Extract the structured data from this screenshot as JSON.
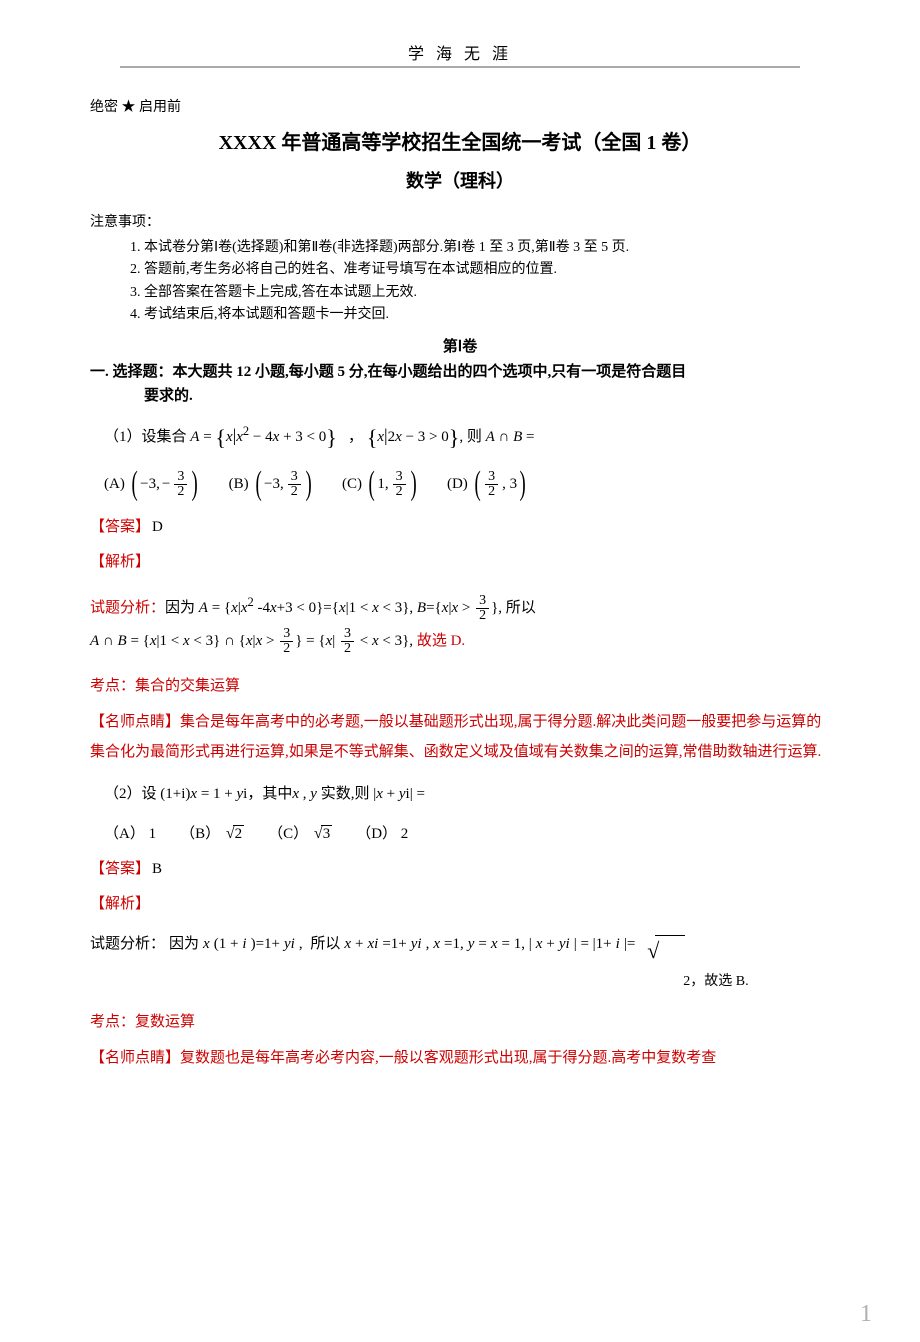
{
  "colors": {
    "text": "#000000",
    "accent_red": "#cc0202",
    "page_num_gray": "#b0b0b0",
    "rule_gray": "#aaaaaa",
    "background": "#ffffff"
  },
  "header": {
    "motto": "学 海 无   涯"
  },
  "confidential": "绝密 ★ 启用前",
  "title": "XXXX 年普通高等学校招生全国统一考试（全国 1 卷）",
  "subject": "数学（理科）",
  "instructions_label": "注意事项：",
  "instructions": [
    "1. 本试卷分第Ⅰ卷(选择题)和第Ⅱ卷(非选择题)两部分.第Ⅰ卷 1 至 3 页,第Ⅱ卷 3 至 5 页.",
    "2. 答题前,考生务必将自己的姓名、准考证号填写在本试题相应的位置.",
    "3. 全部答案在答题卡上完成,答在本试题上无效.",
    "4. 考试结束后,将本试题和答题卡一并交回."
  ],
  "volume_label": "第Ⅰ卷",
  "section_heading_prefix": "一.  选择题：",
  "section_heading_body": "本大题共 12 小题,每小题 5 分,在每小题给出的四个选项中,只有一项是符合题目",
  "section_heading_req": "要求的.",
  "q1": {
    "stem_prefix": "（1）设集合 ",
    "set_A": "A = { x | x² − 4x + 3 < 0 }",
    "set_sep": "，",
    "set_B": "{ x | 2x − 3 > 0 }",
    "stem_suffix": ", 则 A ∩ B =",
    "options": {
      "A": {
        "label": "(A)",
        "lower": "−3,",
        "frac_sign": "−",
        "frac_num": "3",
        "frac_den": "2"
      },
      "B": {
        "label": "(B)",
        "lower": "−3,",
        "frac_sign": "",
        "frac_num": "3",
        "frac_den": "2"
      },
      "C": {
        "label": "(C)",
        "lower": "1,",
        "frac_sign": "",
        "frac_num": "3",
        "frac_den": "2"
      },
      "D": {
        "label": "(D)",
        "lower_frac_num": "3",
        "lower_frac_den": "2",
        "post": ", 3"
      }
    },
    "answer_label": "【答案】",
    "answer": "D",
    "analysis_label": "【解析】",
    "analysis_prefix": "试题分析：",
    "analysis_line1_a": "因为 ",
    "analysis_line1_b": "A = {x|x² -4x+3 < 0}={x|1 < x < 3}, B = {x|x > ",
    "analysis_line1_frac_num": "3",
    "analysis_line1_frac_den": "2",
    "analysis_line1_c": "}, 所以",
    "analysis_line2_a": "A ∩ B = {x|1 < x < 3} ∩ {x|x > ",
    "analysis_line2_b": "} = {x| ",
    "analysis_line2_c": " < x < 3}, ",
    "analysis_line2_d": "故选 D.",
    "topic_label": "考点：集合的交集运算",
    "tip": "【名师点睛】集合是每年高考中的必考题,一般以基础题形式出现,属于得分题.解决此类问题一般要把参与运算的集合化为最简形式再进行运算,如果是不等式解集、函数定义域及值域有关数集之间的运算,常借助数轴进行运算."
  },
  "q2": {
    "stem_prefix": "（2）设 ",
    "stem_eq": "(1+i)x = 1 + yi",
    "stem_mid": "，其中",
    "stem_xy": " x , y ",
    "stem_realnum": "实数,则 ",
    "stem_end": "|x + yi| =",
    "options": {
      "A": {
        "label": "（A）",
        "value": "1"
      },
      "B": {
        "label": "（B）",
        "sqrt": "2"
      },
      "C": {
        "label": "（C）",
        "sqrt": "3"
      },
      "D": {
        "label": "（D）",
        "value": "2"
      }
    },
    "answer_label": "【答案】",
    "answer": "B",
    "analysis_label": "【解析】",
    "analysis_prefix": "试题分析：",
    "analysis_line_a": "因为",
    "analysis_eq1": " x(1 + i)=1+yi, ",
    "analysis_line_b": "所以",
    "analysis_eq2": " x + xi=1+yi, x=1, y = x = 1, |x + yi | = |1+i |= ",
    "analysis_sqrt_sub": "2",
    "analysis_tail": "，故选 B.",
    "topic_label": "考点：复数运算",
    "tip": "【名师点睛】复数题也是每年高考必考内容,一般以客观题形式出现,属于得分题.高考中复数考查"
  },
  "page_number": "1"
}
